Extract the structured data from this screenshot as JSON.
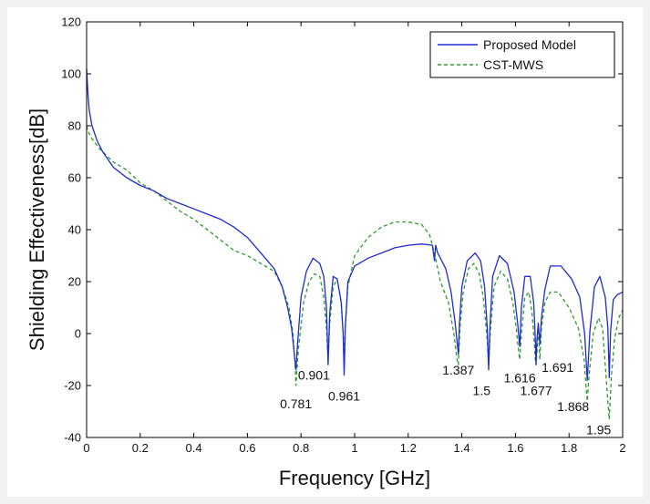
{
  "chart_data": {
    "type": "line",
    "xlabel": "Frequency [GHz]",
    "ylabel": "Shielding Effectiveness[dB]",
    "xlim": [
      0,
      2
    ],
    "ylim": [
      -40,
      120
    ],
    "xticks": [
      "0",
      "0.2",
      "0.4",
      "0.6",
      "0.8",
      "1",
      "1.2",
      "1.4",
      "1.6",
      "1.8",
      "2"
    ],
    "yticks": [
      "120",
      "100",
      "80",
      "60",
      "40",
      "20",
      "0",
      "-20",
      "-40"
    ],
    "grid": false,
    "legend_position": "top-right",
    "series": [
      {
        "name": "Proposed Model",
        "color": "#1f2bd1",
        "style": "solid",
        "x": [
          0,
          0.005,
          0.01,
          0.02,
          0.04,
          0.06,
          0.1,
          0.15,
          0.2,
          0.25,
          0.3,
          0.35,
          0.4,
          0.45,
          0.5,
          0.55,
          0.6,
          0.65,
          0.7,
          0.73,
          0.75,
          0.765,
          0.775,
          0.781,
          0.787,
          0.8,
          0.82,
          0.845,
          0.87,
          0.885,
          0.895,
          0.901,
          0.907,
          0.92,
          0.935,
          0.95,
          0.957,
          0.961,
          0.965,
          0.975,
          1.0,
          1.05,
          1.1,
          1.15,
          1.2,
          1.25,
          1.29,
          1.298,
          1.302,
          1.31,
          1.34,
          1.36,
          1.375,
          1.383,
          1.387,
          1.391,
          1.4,
          1.42,
          1.45,
          1.47,
          1.485,
          1.495,
          1.5,
          1.505,
          1.515,
          1.54,
          1.57,
          1.595,
          1.608,
          1.616,
          1.622,
          1.635,
          1.655,
          1.668,
          1.674,
          1.677,
          1.68,
          1.685,
          1.691,
          1.697,
          1.71,
          1.73,
          1.77,
          1.81,
          1.84,
          1.858,
          1.868,
          1.878,
          1.895,
          1.915,
          1.935,
          1.945,
          1.95,
          1.955,
          1.965,
          1.98,
          2.0
        ],
        "y": [
          102,
          92,
          86,
          80,
          74,
          70,
          64,
          60,
          57,
          55,
          52,
          50,
          48,
          46,
          44,
          41,
          37,
          31,
          25,
          18,
          10,
          2,
          -8,
          -14,
          -4,
          14,
          24,
          29,
          27,
          22,
          10,
          -12,
          8,
          22,
          21,
          12,
          0,
          -16,
          2,
          20,
          26,
          29,
          31,
          33,
          34,
          34.5,
          34,
          28,
          34,
          31,
          25,
          16,
          4,
          -4,
          -8,
          4,
          18,
          28,
          31,
          28,
          18,
          2,
          -14,
          3,
          22,
          30,
          27,
          16,
          4,
          -5,
          10,
          22,
          22,
          12,
          -2,
          -12,
          -3,
          4,
          -4,
          6,
          17,
          26,
          26,
          21,
          14,
          0,
          -18,
          1,
          18,
          22,
          14,
          2,
          -17,
          1,
          13,
          15,
          16
        ]
      },
      {
        "name": "CST-MWS",
        "color": "#2b9a2b",
        "style": "dashed",
        "x": [
          0,
          0.005,
          0.01,
          0.02,
          0.05,
          0.1,
          0.15,
          0.2,
          0.25,
          0.3,
          0.35,
          0.4,
          0.45,
          0.5,
          0.55,
          0.6,
          0.65,
          0.7,
          0.73,
          0.755,
          0.77,
          0.778,
          0.781,
          0.79,
          0.81,
          0.83,
          0.85,
          0.87,
          0.885,
          0.895,
          0.901,
          0.907,
          0.92,
          0.935,
          0.95,
          0.957,
          0.961,
          0.965,
          0.975,
          1.0,
          1.05,
          1.1,
          1.15,
          1.2,
          1.25,
          1.28,
          1.3,
          1.32,
          1.35,
          1.37,
          1.382,
          1.387,
          1.393,
          1.405,
          1.425,
          1.445,
          1.465,
          1.48,
          1.493,
          1.5,
          1.507,
          1.52,
          1.545,
          1.57,
          1.59,
          1.603,
          1.611,
          1.616,
          1.622,
          1.635,
          1.65,
          1.662,
          1.67,
          1.674,
          1.677,
          1.681,
          1.685,
          1.691,
          1.697,
          1.71,
          1.73,
          1.76,
          1.8,
          1.835,
          1.856,
          1.863,
          1.868,
          1.873,
          1.89,
          1.91,
          1.925,
          1.935,
          1.942,
          1.95,
          1.958,
          1.97,
          1.985,
          2.0
        ],
        "y": [
          80,
          78,
          77,
          75,
          71,
          66,
          63,
          58,
          55,
          51,
          47,
          44,
          40,
          36,
          32,
          30,
          27,
          24,
          18,
          10,
          0,
          -12,
          -20,
          -6,
          12,
          20,
          23,
          22,
          14,
          2,
          -10,
          4,
          18,
          21,
          12,
          0,
          -14,
          2,
          18,
          30,
          37,
          41,
          43,
          43,
          42,
          38,
          30,
          20,
          12,
          0,
          -10,
          -12,
          2,
          16,
          25,
          27,
          23,
          14,
          0,
          -12,
          2,
          18,
          24,
          21,
          12,
          2,
          -6,
          -10,
          0,
          14,
          16,
          8,
          -3,
          -10,
          -12,
          -6,
          3,
          -10,
          2,
          12,
          16,
          16,
          10,
          2,
          -10,
          -20,
          -26,
          -18,
          0,
          6,
          2,
          -12,
          -22,
          -33,
          -16,
          -2,
          6,
          9
        ]
      }
    ],
    "annotations": [
      "0.781",
      "0.901",
      "0.961",
      "1.387",
      "1.5",
      "1.616",
      "1.677",
      "1.691",
      "1.868",
      "1.95"
    ]
  }
}
